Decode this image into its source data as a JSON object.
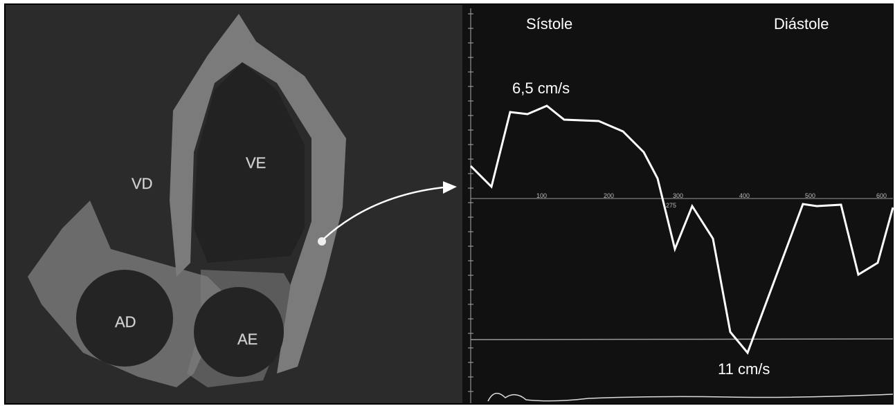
{
  "echo_labels": {
    "right_ventricle": "VD",
    "left_ventricle": "VE",
    "right_atrium": "AD",
    "left_atrium": "AE"
  },
  "doppler": {
    "systole_label": "Sístole",
    "diastole_label": "Diástole",
    "systole_peak": "6,5 cm/s",
    "diastole_peak": "11 cm/s",
    "time_labels": [
      "100",
      "200",
      "300",
      "275",
      "400",
      "500",
      "600"
    ]
  }
}
